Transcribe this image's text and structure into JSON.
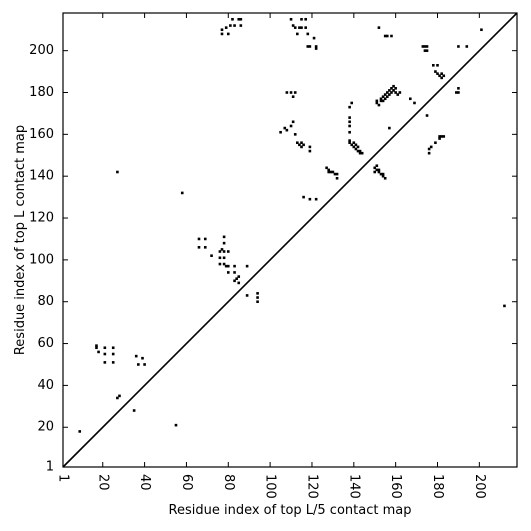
{
  "chart_data": {
    "type": "scatter",
    "xlabel": "Residue index of top L/5 contact map",
    "ylabel": "Residue index of top L contact map",
    "xlim": [
      1,
      218
    ],
    "ylim": [
      1,
      218
    ],
    "x_ticks": [
      1,
      20,
      40,
      60,
      80,
      100,
      120,
      140,
      160,
      180,
      200
    ],
    "y_ticks": [
      1,
      20,
      40,
      60,
      80,
      100,
      120,
      140,
      160,
      180,
      200
    ],
    "x_tick_rotation": -90,
    "diagonal": true,
    "grid": false,
    "marker": "square",
    "marker_color": "#000000",
    "series": [
      {
        "points": [
          [
            9,
            18
          ],
          [
            35,
            28
          ],
          [
            55,
            21
          ],
          [
            27,
            142
          ],
          [
            27,
            34
          ],
          [
            28,
            35
          ],
          [
            17,
            58
          ],
          [
            17,
            59
          ],
          [
            18,
            56
          ],
          [
            21,
            58
          ],
          [
            21,
            55
          ],
          [
            21,
            51
          ],
          [
            25,
            58
          ],
          [
            25,
            55
          ],
          [
            25,
            51
          ],
          [
            36,
            54
          ],
          [
            39,
            53
          ],
          [
            37,
            50
          ],
          [
            40,
            50
          ],
          [
            58,
            132
          ],
          [
            66,
            110
          ],
          [
            66,
            106
          ],
          [
            69,
            110
          ],
          [
            69,
            106
          ],
          [
            72,
            102
          ],
          [
            76,
            104
          ],
          [
            76,
            101
          ],
          [
            76,
            98
          ],
          [
            77,
            105
          ],
          [
            78,
            111
          ],
          [
            78,
            108
          ],
          [
            78,
            104
          ],
          [
            78,
            101
          ],
          [
            78,
            98
          ],
          [
            79,
            97
          ],
          [
            80,
            104
          ],
          [
            80,
            97
          ],
          [
            80,
            94
          ],
          [
            83,
            97
          ],
          [
            83,
            94
          ],
          [
            84,
            91
          ],
          [
            85,
            92
          ],
          [
            83,
            90
          ],
          [
            85,
            89
          ],
          [
            89,
            97
          ],
          [
            89,
            83
          ],
          [
            94,
            84
          ],
          [
            94,
            82
          ],
          [
            94,
            80
          ],
          [
            77,
            208
          ],
          [
            77,
            210
          ],
          [
            79,
            211
          ],
          [
            80,
            208
          ],
          [
            81,
            212
          ],
          [
            82,
            215
          ],
          [
            83,
            212
          ],
          [
            85,
            215
          ],
          [
            86,
            212
          ],
          [
            86,
            215
          ],
          [
            105,
            161
          ],
          [
            107,
            163
          ],
          [
            108,
            162
          ],
          [
            108,
            180
          ],
          [
            110,
            180
          ],
          [
            110,
            164
          ],
          [
            111,
            166
          ],
          [
            112,
            160
          ],
          [
            111,
            178
          ],
          [
            112,
            180
          ],
          [
            111,
            212
          ],
          [
            110,
            215
          ],
          [
            112,
            211
          ],
          [
            113,
            208
          ],
          [
            114,
            211
          ],
          [
            115,
            211
          ],
          [
            115,
            215
          ],
          [
            117,
            215
          ],
          [
            117,
            211
          ],
          [
            118,
            208
          ],
          [
            118,
            202
          ],
          [
            119,
            202
          ],
          [
            121,
            206
          ],
          [
            122,
            202
          ],
          [
            122,
            201
          ],
          [
            113,
            156
          ],
          [
            114,
            155
          ],
          [
            115,
            156
          ],
          [
            115,
            154
          ],
          [
            116,
            155
          ],
          [
            119,
            152
          ],
          [
            119,
            154
          ],
          [
            116,
            130
          ],
          [
            119,
            129
          ],
          [
            122,
            129
          ],
          [
            127,
            144
          ],
          [
            128,
            143
          ],
          [
            128,
            142
          ],
          [
            129,
            142
          ],
          [
            130,
            142
          ],
          [
            131,
            141
          ],
          [
            132,
            141
          ],
          [
            132,
            139
          ],
          [
            138,
            173
          ],
          [
            139,
            175
          ],
          [
            138,
            168
          ],
          [
            138,
            166
          ],
          [
            138,
            164
          ],
          [
            138,
            161
          ],
          [
            138,
            157
          ],
          [
            138,
            156
          ],
          [
            139,
            155
          ],
          [
            140,
            156
          ],
          [
            140,
            154
          ],
          [
            141,
            155
          ],
          [
            141,
            153
          ],
          [
            142,
            154
          ],
          [
            142,
            152
          ],
          [
            143,
            152
          ],
          [
            143,
            151
          ],
          [
            144,
            151
          ],
          [
            150,
            144
          ],
          [
            150,
            142
          ],
          [
            151,
            145
          ],
          [
            151,
            143
          ],
          [
            152,
            142
          ],
          [
            152,
            143
          ],
          [
            153,
            141
          ],
          [
            154,
            141
          ],
          [
            154,
            140
          ],
          [
            155,
            139
          ],
          [
            151,
            176
          ],
          [
            151,
            175
          ],
          [
            152,
            174
          ],
          [
            153,
            176
          ],
          [
            153,
            177
          ],
          [
            154,
            178
          ],
          [
            154,
            176
          ],
          [
            155,
            179
          ],
          [
            155,
            177
          ],
          [
            156,
            180
          ],
          [
            156,
            178
          ],
          [
            157,
            181
          ],
          [
            157,
            179
          ],
          [
            158,
            182
          ],
          [
            158,
            180
          ],
          [
            159,
            183
          ],
          [
            159,
            181
          ],
          [
            160,
            180
          ],
          [
            160,
            182
          ],
          [
            161,
            179
          ],
          [
            162,
            180
          ],
          [
            157,
            163
          ],
          [
            152,
            211
          ],
          [
            155,
            207
          ],
          [
            156,
            207
          ],
          [
            158,
            207
          ],
          [
            167,
            177
          ],
          [
            169,
            175
          ],
          [
            173,
            202
          ],
          [
            174,
            200
          ],
          [
            174,
            202
          ],
          [
            175,
            200
          ],
          [
            175,
            202
          ],
          [
            176,
            151
          ],
          [
            176,
            153
          ],
          [
            177,
            154
          ],
          [
            179,
            156
          ],
          [
            181,
            158
          ],
          [
            181,
            159
          ],
          [
            182,
            159
          ],
          [
            183,
            159
          ],
          [
            175,
            169
          ],
          [
            178,
            193
          ],
          [
            180,
            193
          ],
          [
            179,
            190
          ],
          [
            180,
            189
          ],
          [
            181,
            188
          ],
          [
            182,
            189
          ],
          [
            182,
            187
          ],
          [
            183,
            188
          ],
          [
            189,
            180
          ],
          [
            190,
            182
          ],
          [
            190,
            180
          ],
          [
            190,
            202
          ],
          [
            194,
            202
          ],
          [
            201,
            210
          ],
          [
            212,
            78
          ]
        ]
      }
    ]
  }
}
